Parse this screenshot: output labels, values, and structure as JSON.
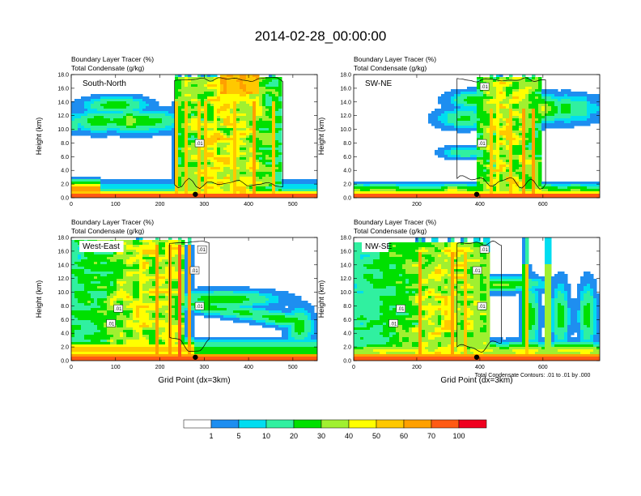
{
  "title": "2014-02-28_00:00:00",
  "footnote": "Total Condensate Contours: .01 to .01 by .000",
  "colors": {
    "scale": [
      "#ffffff",
      "#1e8ef0",
      "#00ddf0",
      "#30f0a0",
      "#00e000",
      "#a0f030",
      "#ffff00",
      "#ffc800",
      "#ffa000",
      "#ff5a14",
      "#f00020"
    ],
    "contour": "#000000"
  },
  "chart_data": {
    "type": "heatmap",
    "colorbar": {
      "levels": [
        1,
        5,
        10,
        20,
        30,
        40,
        50,
        60,
        70,
        100
      ]
    },
    "panels": [
      {
        "label": "South-North",
        "field1": "Boundary Layer Tracer    (%)",
        "field2": "Total Condensate    (g/kg)",
        "xlim": [
          0,
          555
        ],
        "xticks": [
          "0",
          "100",
          "200",
          "300",
          "400",
          "500"
        ],
        "xtick_vals": [
          0,
          100,
          200,
          300,
          400,
          500
        ],
        "ylim": [
          0,
          18
        ],
        "yticks": [
          "0.0",
          "2.0",
          "4.0",
          "6.0",
          "8.0",
          "10.0",
          "12.0",
          "14.0",
          "16.0",
          "18.0"
        ],
        "ylabel": "Height (km)",
        "xlabel": "",
        "contour_labels": [
          ".01"
        ],
        "marker_x": 280
      },
      {
        "label": "SW-NE",
        "field1": "Boundary Layer Tracer    (%)",
        "field2": "Total Condensate    (g/kg)",
        "xlim": [
          0,
          780
        ],
        "xticks": [
          "200",
          "400",
          "600"
        ],
        "xtick_vals": [
          200,
          400,
          600
        ],
        "ylim": [
          0,
          18
        ],
        "yticks": [
          "0.0",
          "2.0",
          "4.0",
          "6.0",
          "8.0",
          "10.0",
          "12.0",
          "14.0",
          "16.0",
          "18.0"
        ],
        "ylabel": "Height (km)",
        "xlabel": "",
        "contour_labels": [
          ".01",
          ".01"
        ],
        "marker_x": 390
      },
      {
        "label": "West-East",
        "field1": "Boundary Layer Tracer    (%)",
        "field2": "Total Condensate    (g/kg)",
        "xlim": [
          0,
          555
        ],
        "xticks": [
          "0",
          "100",
          "200",
          "300",
          "400",
          "500"
        ],
        "xtick_vals": [
          0,
          100,
          200,
          300,
          400,
          500
        ],
        "ylim": [
          0,
          18
        ],
        "yticks": [
          "0.0",
          "2.0",
          "4.0",
          "6.0",
          "8.0",
          "10.0",
          "12.0",
          "14.0",
          "16.0",
          "18.0"
        ],
        "ylabel": "Height (km)",
        "xlabel": "Grid Point (dx=3km)",
        "contour_labels": [
          ".01",
          ".01",
          ".01",
          ".01",
          ".01"
        ],
        "marker_x": 280
      },
      {
        "label": "NW-SE",
        "field1": "Boundary Layer Tracer    (%)",
        "field2": "Total Condensate    (g/kg)",
        "xlim": [
          0,
          780
        ],
        "xticks": [
          "0",
          "200",
          "400",
          "600"
        ],
        "xtick_vals": [
          0,
          200,
          400,
          600
        ],
        "ylim": [
          0,
          18
        ],
        "yticks": [
          "0.0",
          "2.0",
          "4.0",
          "6.0",
          "8.0",
          "10.0",
          "12.0",
          "14.0",
          "16.0",
          "18.0"
        ],
        "ylabel": "Height (km)",
        "xlabel": "Grid Point (dx=3km)",
        "contour_labels": [
          ".01",
          ".01",
          ".01",
          ".01",
          ".01"
        ],
        "marker_x": 390
      }
    ]
  }
}
